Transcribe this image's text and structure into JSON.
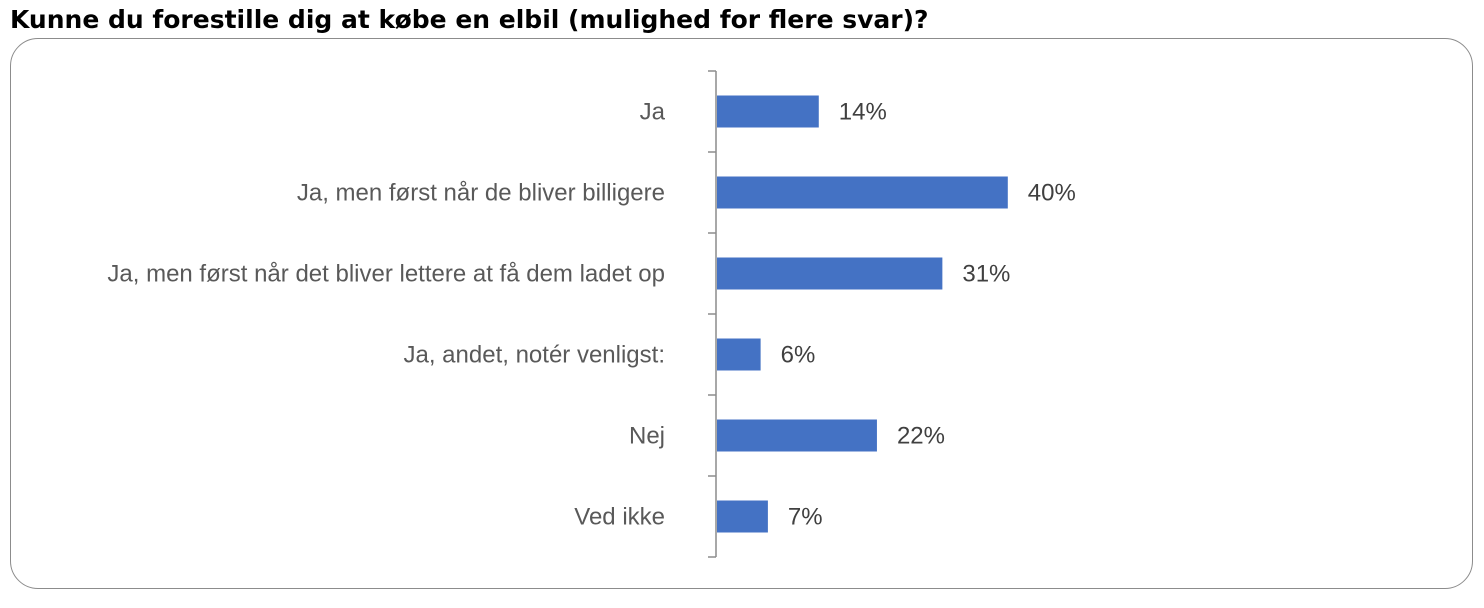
{
  "title": "Kunne du forestille dig at købe en elbil (mulighed for flere svar)?",
  "chart_data": {
    "type": "bar",
    "orientation": "horizontal",
    "categories": [
      "Ja",
      "Ja, men først når de bliver billigere",
      "Ja, men først når det bliver lettere at få dem ladet op",
      "Ja, andet, notér venligst:",
      "Nej",
      "Ved ikke"
    ],
    "values": [
      14,
      40,
      31,
      6,
      22,
      7
    ],
    "data_labels": [
      "14%",
      "40%",
      "31%",
      "6%",
      "22%",
      "7%"
    ],
    "unit": "%",
    "xlim": [
      0,
      100
    ],
    "grid": false,
    "legend": "none",
    "bar_color": "#4472C4"
  }
}
